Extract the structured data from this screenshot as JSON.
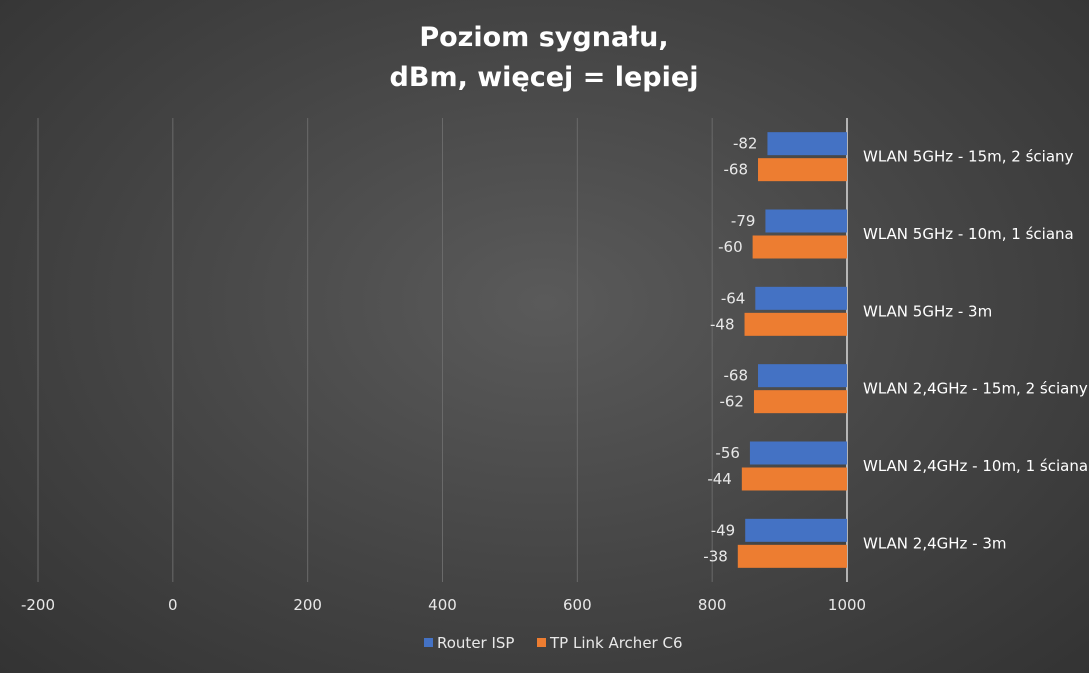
{
  "chart_data": {
    "type": "bar",
    "orientation": "horizontal",
    "title": "Poziom sygnału,",
    "subtitle": "dBm, więcej = lepiej",
    "categories": [
      "WLAN 5GHz - 15m, 2 ściany",
      "WLAN 5GHz - 10m, 1 ściana",
      "WLAN 5GHz - 3m",
      "WLAN 2,4GHz - 15m, 2 ściany",
      "WLAN 2,4GHz - 10m, 1 ściana",
      "WLAN 2,4GHz - 3m"
    ],
    "series": [
      {
        "name": "Router ISP",
        "color": "#4472C4",
        "values": [
          -82,
          -79,
          -64,
          -68,
          -56,
          -49
        ]
      },
      {
        "name": "TP Link Archer C6",
        "color": "#ED7D31",
        "values": [
          -68,
          -60,
          -48,
          -62,
          -44,
          -38
        ]
      }
    ],
    "xlim": [
      -200,
      1000
    ],
    "xticks": [
      "-200",
      "0",
      "200",
      "400",
      "600",
      "800",
      "1000"
    ],
    "grid": true,
    "legend": "bottom"
  }
}
